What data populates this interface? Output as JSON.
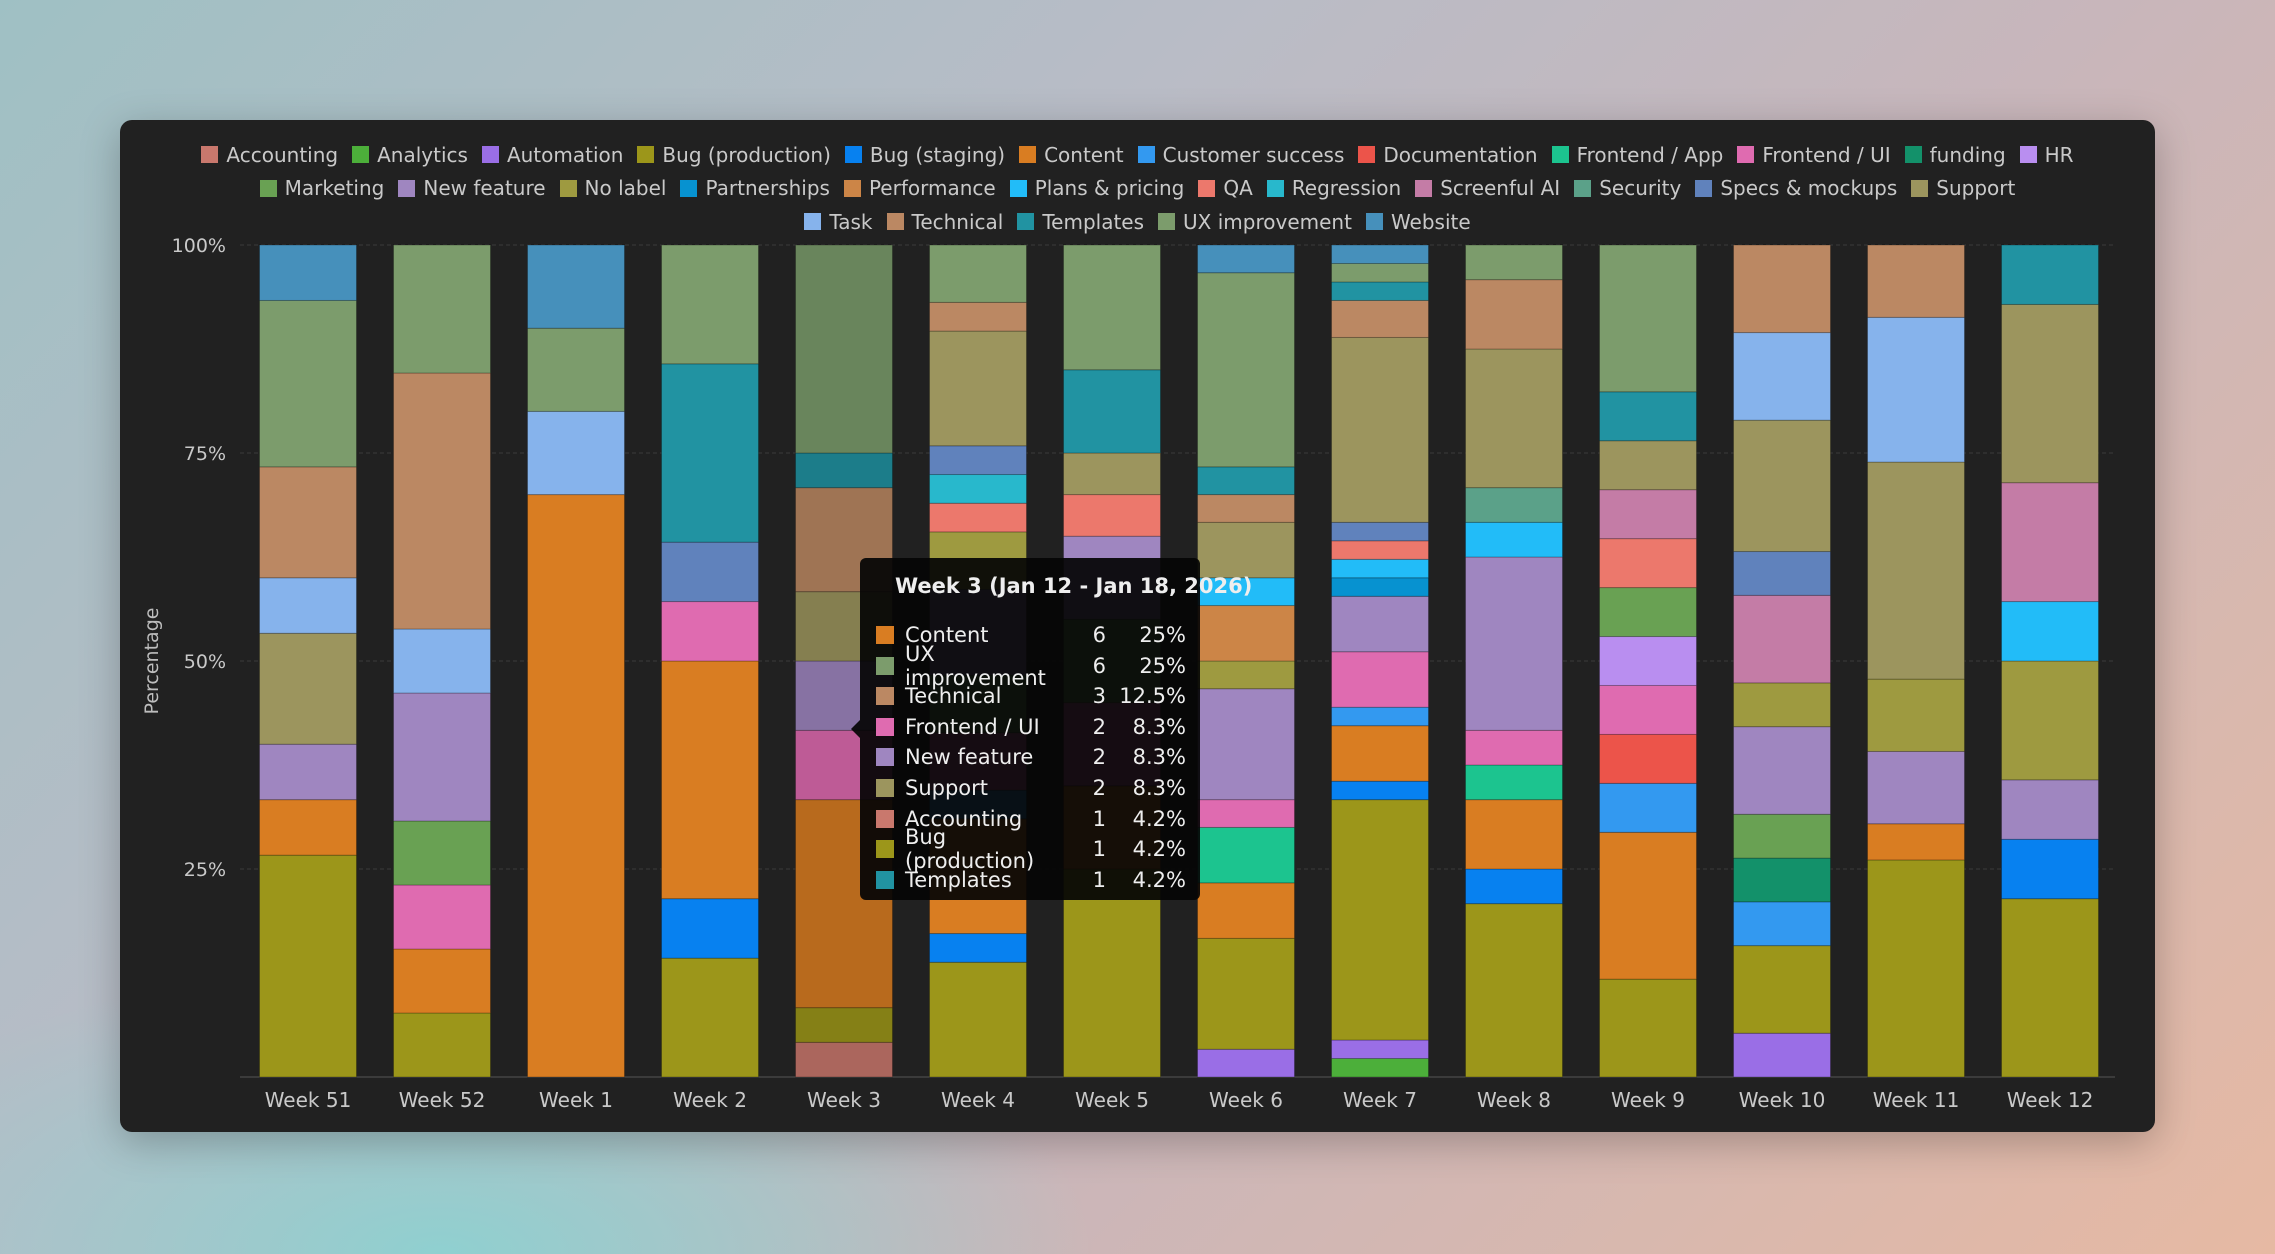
{
  "chart_data": {
    "type": "bar",
    "stacked": true,
    "normalized_percent": true,
    "ylabel": "Percentage",
    "ylim": [
      0,
      100
    ],
    "yticks": [
      "100%",
      "75%",
      "50%",
      "25%"
    ],
    "grid": true,
    "legend_position": "top",
    "categories": [
      "Week 51",
      "Week 52",
      "Week 1",
      "Week 2",
      "Week 3",
      "Week 4",
      "Week 5",
      "Week 6",
      "Week 7",
      "Week 8",
      "Week 9",
      "Week 10",
      "Week 11",
      "Week 12"
    ],
    "series": [
      {
        "name": "Accounting",
        "color": "#c9786d",
        "values": [
          0,
          0,
          0,
          0,
          1,
          0,
          0,
          0,
          0,
          0,
          0,
          0,
          0,
          0
        ]
      },
      {
        "name": "Analytics",
        "color": "#4caf3a",
        "values": [
          0,
          0,
          0,
          0,
          0,
          0,
          0,
          0,
          1,
          0,
          0,
          0,
          0,
          0
        ]
      },
      {
        "name": "Automation",
        "color": "#9a6ee6",
        "values": [
          0,
          0,
          0,
          0,
          0,
          0,
          0,
          1,
          1,
          0,
          0,
          1,
          0,
          0
        ]
      },
      {
        "name": "Bug (production)",
        "color": "#9c961a",
        "values": [
          4,
          1,
          0,
          2,
          1,
          4,
          5,
          4,
          13,
          5,
          2,
          2,
          6,
          3
        ]
      },
      {
        "name": "Bug (staging)",
        "color": "#0781f0",
        "values": [
          0,
          0,
          0,
          1,
          0,
          1,
          0,
          0,
          1,
          1,
          0,
          0,
          0,
          1
        ]
      },
      {
        "name": "Content",
        "color": "#d97d22",
        "values": [
          1,
          1,
          7,
          4,
          6,
          4,
          2,
          2,
          3,
          2,
          3,
          0,
          1,
          0
        ]
      },
      {
        "name": "Customer success",
        "color": "#3399f0",
        "values": [
          0,
          0,
          0,
          0,
          0,
          1,
          0,
          0,
          1,
          0,
          1,
          1,
          0,
          0
        ]
      },
      {
        "name": "Documentation",
        "color": "#ec544a",
        "values": [
          0,
          0,
          0,
          0,
          0,
          0,
          0,
          0,
          0,
          0,
          1,
          0,
          0,
          0
        ]
      },
      {
        "name": "Frontend / App",
        "color": "#1cc48f",
        "values": [
          0,
          0,
          0,
          0,
          0,
          0,
          0,
          2,
          0,
          1,
          0,
          0,
          0,
          0
        ]
      },
      {
        "name": "Frontend / UI",
        "color": "#df6bb0",
        "values": [
          0,
          1,
          0,
          1,
          2,
          2,
          2,
          1,
          3,
          1,
          1,
          0,
          0,
          0
        ]
      },
      {
        "name": "funding",
        "color": "#13916a",
        "values": [
          0,
          0,
          0,
          0,
          0,
          0,
          0,
          0,
          0,
          0,
          0,
          1,
          0,
          0
        ]
      },
      {
        "name": "HR",
        "color": "#b98ef0",
        "values": [
          0,
          0,
          0,
          0,
          0,
          0,
          0,
          0,
          0,
          0,
          1,
          0,
          0,
          0
        ]
      },
      {
        "name": "Marketing",
        "color": "#69a153",
        "values": [
          0,
          1,
          0,
          0,
          0,
          2,
          2,
          0,
          0,
          0,
          1,
          1,
          0,
          0
        ]
      },
      {
        "name": "New feature",
        "color": "#9f86c0",
        "values": [
          1,
          2,
          0,
          0,
          2,
          3,
          2,
          4,
          3,
          5,
          0,
          2,
          2,
          1
        ]
      },
      {
        "name": "No label",
        "color": "#9e9a40",
        "values": [
          0,
          0,
          0,
          0,
          0,
          2,
          0,
          1,
          0,
          0,
          0,
          1,
          2,
          2
        ]
      },
      {
        "name": "Partnerships",
        "color": "#0792d0",
        "values": [
          0,
          0,
          0,
          0,
          0,
          0,
          0,
          0,
          1,
          0,
          0,
          0,
          0,
          0
        ]
      },
      {
        "name": "Performance",
        "color": "#cc8547",
        "values": [
          0,
          0,
          0,
          0,
          0,
          0,
          0,
          2,
          0,
          0,
          0,
          0,
          0,
          0
        ]
      },
      {
        "name": "Plans & pricing",
        "color": "#22bcf8",
        "values": [
          0,
          0,
          0,
          0,
          0,
          0,
          0,
          1,
          1,
          1,
          0,
          0,
          0,
          1
        ]
      },
      {
        "name": "QA",
        "color": "#ec786c",
        "values": [
          0,
          0,
          0,
          0,
          0,
          1,
          1,
          0,
          1,
          0,
          1,
          0,
          0,
          0
        ]
      },
      {
        "name": "Regression",
        "color": "#28b8cc",
        "values": [
          0,
          0,
          0,
          0,
          0,
          1,
          0,
          0,
          0,
          0,
          0,
          0,
          0,
          0
        ]
      },
      {
        "name": "Screenful AI",
        "color": "#c47ca6",
        "values": [
          0,
          0,
          0,
          0,
          0,
          0,
          0,
          0,
          0,
          0,
          1,
          2,
          0,
          2
        ]
      },
      {
        "name": "Security",
        "color": "#5ba189",
        "values": [
          0,
          0,
          0,
          0,
          0,
          0,
          0,
          0,
          0,
          1,
          0,
          0,
          0,
          0
        ]
      },
      {
        "name": "Specs & mockups",
        "color": "#6082bc",
        "values": [
          0,
          0,
          0,
          1,
          0,
          1,
          0,
          0,
          1,
          0,
          0,
          1,
          0,
          0
        ]
      },
      {
        "name": "Support",
        "color": "#9c955e",
        "values": [
          2,
          0,
          0,
          0,
          2,
          4,
          1,
          2,
          10,
          4,
          1,
          3,
          6,
          3
        ]
      },
      {
        "name": "Task",
        "color": "#86b3ec",
        "values": [
          1,
          1,
          1,
          0,
          0,
          0,
          0,
          0,
          0,
          0,
          0,
          2,
          4,
          0
        ]
      },
      {
        "name": "Technical",
        "color": "#bb8863",
        "values": [
          2,
          4,
          0,
          0,
          3,
          1,
          0,
          1,
          2,
          2,
          0,
          2,
          2,
          0
        ]
      },
      {
        "name": "Templates",
        "color": "#2193a2",
        "values": [
          0,
          0,
          0,
          3,
          1,
          0,
          2,
          1,
          1,
          0,
          1,
          0,
          0,
          1
        ]
      },
      {
        "name": "UX improvement",
        "color": "#7c9c6c",
        "values": [
          3,
          2,
          1,
          2,
          6,
          2,
          3,
          7,
          1,
          1,
          3,
          0,
          0,
          0
        ]
      },
      {
        "name": "Website",
        "color": "#4690bb",
        "values": [
          1,
          0,
          1,
          0,
          0,
          0,
          0,
          1,
          1,
          0,
          0,
          0,
          0,
          0
        ]
      }
    ],
    "tooltip": {
      "category": "Week 3",
      "title": "Week 3 (Jan 12 - Jan 18, 2026)",
      "rows": [
        {
          "name": "Content",
          "color": "#d97d22",
          "count": "6",
          "pct": "25%"
        },
        {
          "name": "UX improvement",
          "color": "#7c9c6c",
          "count": "6",
          "pct": "25%"
        },
        {
          "name": "Technical",
          "color": "#bb8863",
          "count": "3",
          "pct": "12.5%"
        },
        {
          "name": "Frontend / UI",
          "color": "#df6bb0",
          "count": "2",
          "pct": "8.3%"
        },
        {
          "name": "New feature",
          "color": "#9f86c0",
          "count": "2",
          "pct": "8.3%"
        },
        {
          "name": "Support",
          "color": "#9c955e",
          "count": "2",
          "pct": "8.3%"
        },
        {
          "name": "Accounting",
          "color": "#c9786d",
          "count": "1",
          "pct": "4.2%"
        },
        {
          "name": "Bug (production)",
          "color": "#9c961a",
          "count": "1",
          "pct": "4.2%"
        },
        {
          "name": "Templates",
          "color": "#2193a2",
          "count": "1",
          "pct": "4.2%"
        }
      ]
    }
  }
}
